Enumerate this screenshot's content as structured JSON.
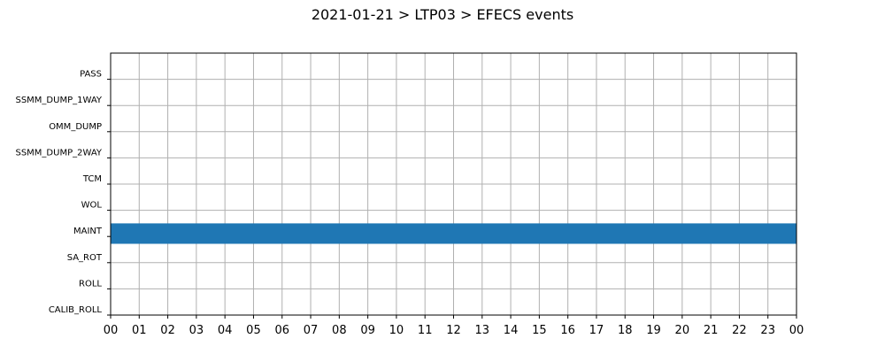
{
  "chart_data": {
    "type": "timeline",
    "title": "2021-01-21 > LTP03 > EFECS events",
    "categories": [
      "PASS",
      "SSMM_DUMP_1WAY",
      "OMM_DUMP",
      "SSMM_DUMP_2WAY",
      "TCM",
      "WOL",
      "MAINT",
      "SA_ROT",
      "ROLL",
      "CALIB_ROLL"
    ],
    "x_tick_labels": [
      "00",
      "01",
      "02",
      "03",
      "04",
      "05",
      "06",
      "07",
      "08",
      "09",
      "10",
      "11",
      "12",
      "13",
      "14",
      "15",
      "16",
      "17",
      "18",
      "19",
      "20",
      "21",
      "22",
      "23",
      "00"
    ],
    "xlim_hours": [
      0,
      24
    ],
    "grid": true,
    "events": [
      {
        "category": "MAINT",
        "start_hour": 0,
        "end_hour": 24,
        "color": "#1f77b4"
      }
    ]
  }
}
